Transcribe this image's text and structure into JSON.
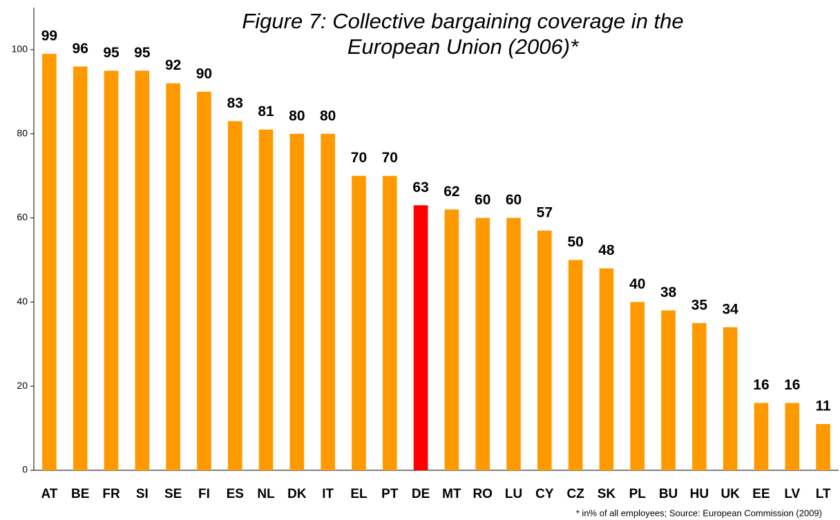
{
  "chart_data": {
    "type": "bar",
    "title": [
      "Figure 7: Collective bargaining coverage in the",
      "European Union (2006)*"
    ],
    "note": "* in% of all employees; Source: European Commission (2009)",
    "categories": [
      "AT",
      "BE",
      "FR",
      "SI",
      "SE",
      "FI",
      "ES",
      "NL",
      "DK",
      "IT",
      "EL",
      "PT",
      "DE",
      "MT",
      "RO",
      "LU",
      "CY",
      "CZ",
      "SK",
      "PL",
      "BU",
      "HU",
      "UK",
      "EE",
      "LV",
      "LT"
    ],
    "values": [
      99,
      96,
      95,
      95,
      92,
      90,
      83,
      81,
      80,
      80,
      70,
      70,
      63,
      62,
      60,
      60,
      57,
      50,
      48,
      40,
      38,
      35,
      34,
      16,
      16,
      11
    ],
    "colors": [
      "#ff9900",
      "#ff9900",
      "#ff9900",
      "#ff9900",
      "#ff9900",
      "#ff9900",
      "#ff9900",
      "#ff9900",
      "#ff9900",
      "#ff9900",
      "#ff9900",
      "#ff9900",
      "#ff0000",
      "#ff9900",
      "#ff9900",
      "#ff9900",
      "#ff9900",
      "#ff9900",
      "#ff9900",
      "#ff9900",
      "#ff9900",
      "#ff9900",
      "#ff9900",
      "#ff9900",
      "#ff9900",
      "#ff9900"
    ],
    "ylim": [
      0,
      110
    ],
    "yticks": [
      0,
      20,
      40,
      60,
      80,
      100
    ],
    "grid": false
  }
}
